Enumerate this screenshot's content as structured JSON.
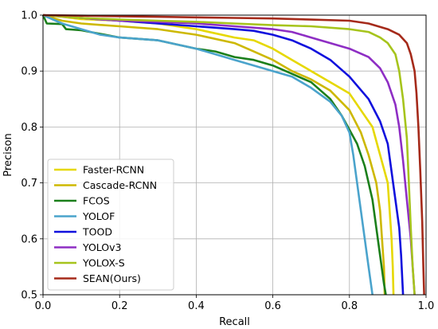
{
  "chart_data": {
    "type": "line",
    "title": "",
    "xlabel": "Recall",
    "ylabel": "Precison",
    "xlim": [
      0.0,
      1.0
    ],
    "ylim": [
      0.5,
      1.0
    ],
    "xticks": [
      "0.0",
      "0.2",
      "0.4",
      "0.6",
      "0.8",
      "1.0"
    ],
    "yticks": [
      "0.5",
      "0.6",
      "0.7",
      "0.8",
      "0.9",
      "1.0"
    ],
    "grid": true,
    "legend_position": "lower-left",
    "series": [
      {
        "name": "Faster-RCNN",
        "color": "#e6d800",
        "points": [
          [
            0.0,
            1.0
          ],
          [
            0.05,
            0.997
          ],
          [
            0.1,
            0.993
          ],
          [
            0.2,
            0.99
          ],
          [
            0.3,
            0.985
          ],
          [
            0.4,
            0.975
          ],
          [
            0.5,
            0.96
          ],
          [
            0.55,
            0.955
          ],
          [
            0.6,
            0.94
          ],
          [
            0.65,
            0.92
          ],
          [
            0.7,
            0.9
          ],
          [
            0.75,
            0.88
          ],
          [
            0.8,
            0.86
          ],
          [
            0.83,
            0.83
          ],
          [
            0.86,
            0.8
          ],
          [
            0.88,
            0.75
          ],
          [
            0.9,
            0.7
          ],
          [
            0.905,
            0.65
          ],
          [
            0.91,
            0.6
          ],
          [
            0.913,
            0.55
          ],
          [
            0.915,
            0.5
          ]
        ]
      },
      {
        "name": "Cascade-RCNN",
        "color": "#cdb800",
        "points": [
          [
            0.0,
            1.0
          ],
          [
            0.05,
            0.99
          ],
          [
            0.1,
            0.985
          ],
          [
            0.2,
            0.98
          ],
          [
            0.3,
            0.975
          ],
          [
            0.4,
            0.965
          ],
          [
            0.5,
            0.95
          ],
          [
            0.55,
            0.935
          ],
          [
            0.6,
            0.92
          ],
          [
            0.65,
            0.9
          ],
          [
            0.7,
            0.885
          ],
          [
            0.75,
            0.865
          ],
          [
            0.8,
            0.83
          ],
          [
            0.83,
            0.79
          ],
          [
            0.85,
            0.75
          ],
          [
            0.87,
            0.7
          ],
          [
            0.88,
            0.65
          ],
          [
            0.885,
            0.6
          ],
          [
            0.89,
            0.55
          ],
          [
            0.892,
            0.5
          ]
        ]
      },
      {
        "name": "FCOS",
        "color": "#1b7f1b",
        "points": [
          [
            0.0,
            1.0
          ],
          [
            0.01,
            0.985
          ],
          [
            0.05,
            0.984
          ],
          [
            0.06,
            0.975
          ],
          [
            0.1,
            0.973
          ],
          [
            0.2,
            0.96
          ],
          [
            0.3,
            0.955
          ],
          [
            0.4,
            0.94
          ],
          [
            0.45,
            0.935
          ],
          [
            0.5,
            0.925
          ],
          [
            0.55,
            0.92
          ],
          [
            0.6,
            0.91
          ],
          [
            0.65,
            0.895
          ],
          [
            0.7,
            0.88
          ],
          [
            0.75,
            0.85
          ],
          [
            0.78,
            0.82
          ],
          [
            0.8,
            0.795
          ],
          [
            0.82,
            0.77
          ],
          [
            0.84,
            0.73
          ],
          [
            0.86,
            0.67
          ],
          [
            0.87,
            0.62
          ],
          [
            0.88,
            0.57
          ],
          [
            0.89,
            0.52
          ],
          [
            0.895,
            0.5
          ]
        ]
      },
      {
        "name": "YOLOF",
        "color": "#4aa3cc",
        "points": [
          [
            0.0,
            1.0
          ],
          [
            0.05,
            0.985
          ],
          [
            0.1,
            0.975
          ],
          [
            0.15,
            0.965
          ],
          [
            0.2,
            0.96
          ],
          [
            0.3,
            0.955
          ],
          [
            0.4,
            0.94
          ],
          [
            0.45,
            0.93
          ],
          [
            0.5,
            0.92
          ],
          [
            0.55,
            0.91
          ],
          [
            0.6,
            0.9
          ],
          [
            0.65,
            0.89
          ],
          [
            0.7,
            0.87
          ],
          [
            0.75,
            0.845
          ],
          [
            0.78,
            0.82
          ],
          [
            0.8,
            0.79
          ],
          [
            0.81,
            0.75
          ],
          [
            0.82,
            0.7
          ],
          [
            0.83,
            0.65
          ],
          [
            0.84,
            0.6
          ],
          [
            0.85,
            0.55
          ],
          [
            0.86,
            0.5
          ]
        ]
      },
      {
        "name": "TOOD",
        "color": "#1010dd",
        "points": [
          [
            0.0,
            1.0
          ],
          [
            0.1,
            0.995
          ],
          [
            0.2,
            0.99
          ],
          [
            0.3,
            0.985
          ],
          [
            0.4,
            0.98
          ],
          [
            0.5,
            0.975
          ],
          [
            0.55,
            0.972
          ],
          [
            0.6,
            0.965
          ],
          [
            0.65,
            0.955
          ],
          [
            0.7,
            0.94
          ],
          [
            0.75,
            0.92
          ],
          [
            0.8,
            0.89
          ],
          [
            0.85,
            0.85
          ],
          [
            0.88,
            0.81
          ],
          [
            0.9,
            0.77
          ],
          [
            0.91,
            0.72
          ],
          [
            0.92,
            0.67
          ],
          [
            0.93,
            0.62
          ],
          [
            0.935,
            0.57
          ],
          [
            0.94,
            0.5
          ]
        ]
      },
      {
        "name": "YOLOv3",
        "color": "#8e2ec4",
        "points": [
          [
            0.0,
            1.0
          ],
          [
            0.1,
            0.995
          ],
          [
            0.2,
            0.99
          ],
          [
            0.3,
            0.988
          ],
          [
            0.4,
            0.985
          ],
          [
            0.5,
            0.98
          ],
          [
            0.6,
            0.975
          ],
          [
            0.65,
            0.97
          ],
          [
            0.7,
            0.96
          ],
          [
            0.75,
            0.95
          ],
          [
            0.8,
            0.94
          ],
          [
            0.85,
            0.925
          ],
          [
            0.88,
            0.905
          ],
          [
            0.9,
            0.88
          ],
          [
            0.92,
            0.84
          ],
          [
            0.93,
            0.8
          ],
          [
            0.94,
            0.74
          ],
          [
            0.95,
            0.67
          ],
          [
            0.96,
            0.6
          ],
          [
            0.965,
            0.55
          ],
          [
            0.97,
            0.5
          ]
        ]
      },
      {
        "name": "YOLOX-S",
        "color": "#a6c41c",
        "points": [
          [
            0.0,
            1.0
          ],
          [
            0.1,
            0.995
          ],
          [
            0.2,
            0.992
          ],
          [
            0.3,
            0.99
          ],
          [
            0.4,
            0.988
          ],
          [
            0.5,
            0.985
          ],
          [
            0.6,
            0.982
          ],
          [
            0.7,
            0.98
          ],
          [
            0.8,
            0.975
          ],
          [
            0.85,
            0.97
          ],
          [
            0.88,
            0.96
          ],
          [
            0.9,
            0.95
          ],
          [
            0.92,
            0.93
          ],
          [
            0.93,
            0.9
          ],
          [
            0.94,
            0.85
          ],
          [
            0.95,
            0.78
          ],
          [
            0.955,
            0.7
          ],
          [
            0.96,
            0.62
          ],
          [
            0.965,
            0.55
          ],
          [
            0.97,
            0.5
          ]
        ]
      },
      {
        "name": "SEAN(Ours)",
        "color": "#a52a1a",
        "points": [
          [
            0.0,
            1.0
          ],
          [
            0.1,
            0.999
          ],
          [
            0.2,
            0.998
          ],
          [
            0.3,
            0.997
          ],
          [
            0.4,
            0.996
          ],
          [
            0.5,
            0.995
          ],
          [
            0.6,
            0.994
          ],
          [
            0.7,
            0.992
          ],
          [
            0.8,
            0.99
          ],
          [
            0.85,
            0.985
          ],
          [
            0.9,
            0.975
          ],
          [
            0.93,
            0.965
          ],
          [
            0.95,
            0.95
          ],
          [
            0.96,
            0.93
          ],
          [
            0.97,
            0.9
          ],
          [
            0.975,
            0.86
          ],
          [
            0.98,
            0.8
          ],
          [
            0.985,
            0.72
          ],
          [
            0.99,
            0.63
          ],
          [
            0.993,
            0.55
          ],
          [
            0.995,
            0.5
          ]
        ]
      }
    ]
  }
}
